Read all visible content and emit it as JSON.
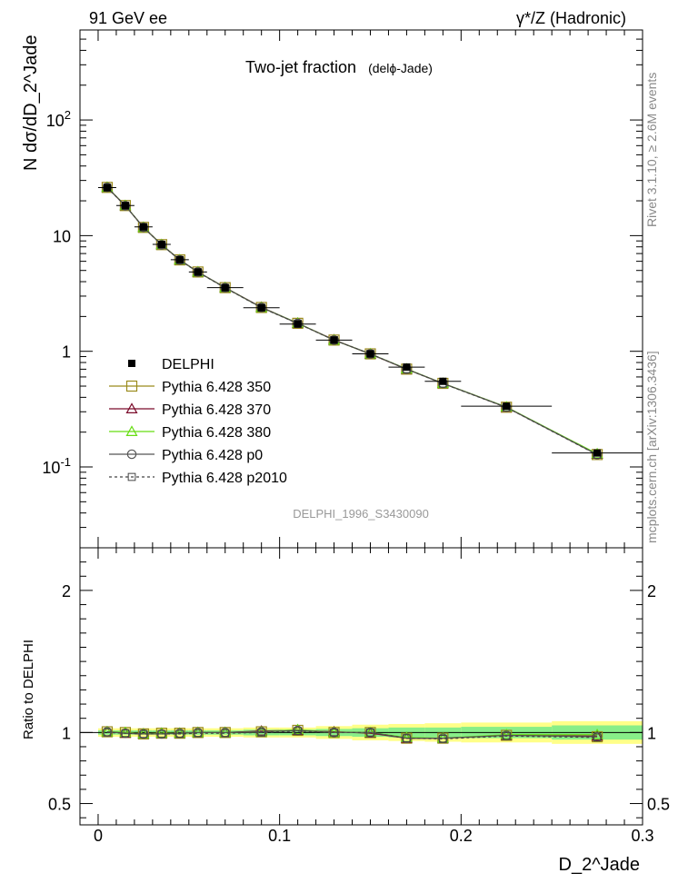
{
  "header": {
    "left": "91 GeV ee",
    "right": "γ*/Z (Hadronic)"
  },
  "side_labels": {
    "rivet": "Rivet 3.1.10, ≥ 2.6M events",
    "mcplots": "mcplots.cern.ch [arXiv:1306.3436]"
  },
  "chart_data": {
    "type": "line",
    "title": "Two-jet fraction",
    "title_sub": "(delϕ-Jade)",
    "analysis_id": "DELPHI_1996_S3430090",
    "xlabel": "D_2^Jade",
    "ylabel": "N dσ/dD_2^Jade",
    "ratio_ylabel": "Ratio to DELPHI",
    "xlim": [
      -0.01,
      0.3
    ],
    "ylim": [
      0.02,
      600
    ],
    "yscale": "log",
    "ratio_ylim": [
      0.35,
      2.3
    ],
    "x_ticks": [
      "0",
      "0.1",
      "0.2",
      "0.3"
    ],
    "y_ticks_main": [
      "10^-1",
      "1",
      "10",
      "10^2"
    ],
    "y_ticks_ratio": [
      "0.5",
      "1",
      "2"
    ],
    "x": [
      0.005,
      0.015,
      0.025,
      0.035,
      0.045,
      0.055,
      0.07,
      0.09,
      0.11,
      0.13,
      0.15,
      0.17,
      0.19,
      0.225,
      0.275
    ],
    "x_bins": [
      0.0,
      0.01,
      0.02,
      0.03,
      0.04,
      0.05,
      0.06,
      0.08,
      0.1,
      0.12,
      0.14,
      0.16,
      0.18,
      0.2,
      0.25,
      0.3
    ],
    "data": {
      "name": "DELPHI",
      "values": [
        26.0,
        18.2,
        11.9,
        8.4,
        6.2,
        4.85,
        3.55,
        2.38,
        1.72,
        1.25,
        0.95,
        0.73,
        0.55,
        0.335,
        0.132
      ]
    },
    "ratio_band_inner": [
      0.015,
      0.015,
      0.015,
      0.015,
      0.015,
      0.015,
      0.015,
      0.02,
      0.02,
      0.025,
      0.03,
      0.035,
      0.035,
      0.04,
      0.05
    ],
    "ratio_band_outer": [
      0.03,
      0.03,
      0.03,
      0.03,
      0.03,
      0.03,
      0.03,
      0.035,
      0.035,
      0.045,
      0.055,
      0.06,
      0.065,
      0.07,
      0.08
    ],
    "series": [
      {
        "name": "Pythia 6.428 350",
        "color": "#9a8a1c",
        "marker": "square",
        "dash": "",
        "ratio": [
          1.005,
          1.0,
          0.99,
          0.995,
          0.995,
          1.0,
          1.0,
          1.005,
          1.015,
          1.0,
          1.0,
          0.96,
          0.96,
          0.98,
          0.97
        ]
      },
      {
        "name": "Pythia 6.428 370",
        "color": "#7a0a2a",
        "marker": "triangle",
        "dash": "",
        "ratio": [
          1.005,
          0.995,
          0.99,
          0.995,
          0.995,
          1.0,
          1.0,
          1.01,
          1.015,
          1.005,
          0.995,
          0.96,
          0.96,
          0.98,
          0.975
        ]
      },
      {
        "name": "Pythia 6.428 380",
        "color": "#66dd11",
        "marker": "triangle",
        "dash": "",
        "ratio": [
          1.005,
          1.0,
          0.99,
          0.995,
          0.995,
          1.0,
          1.0,
          1.005,
          1.02,
          1.0,
          1.0,
          0.965,
          0.96,
          0.985,
          0.985
        ]
      },
      {
        "name": "Pythia 6.428 p0",
        "color": "#555555",
        "marker": "circle",
        "dash": "",
        "ratio": [
          1.005,
          0.995,
          0.99,
          0.99,
          0.995,
          1.0,
          1.0,
          1.005,
          1.015,
          1.0,
          1.0,
          0.96,
          0.96,
          0.98,
          0.97
        ]
      },
      {
        "name": "Pythia 6.428 p2010",
        "color": "#444444",
        "marker": "square-small",
        "dash": "3,3",
        "ratio": [
          1.0,
          0.995,
          0.99,
          0.99,
          0.99,
          0.995,
          0.995,
          1.0,
          1.01,
          1.0,
          1.0,
          0.96,
          0.955,
          0.975,
          0.965
        ]
      }
    ],
    "colors": {
      "band_inner": "#88ee88",
      "band_outer": "#ffff88",
      "data": "#000000"
    }
  }
}
